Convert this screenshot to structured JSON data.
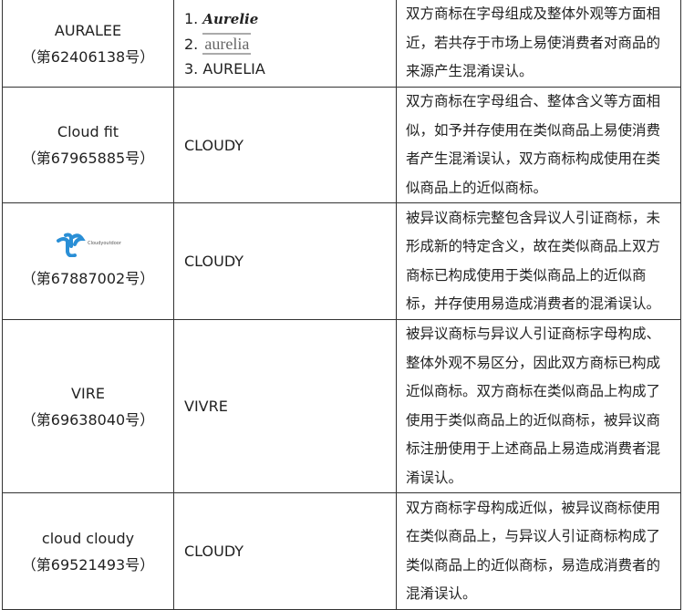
{
  "rows": [
    {
      "name": "AURALEE",
      "reg": "（第62406138号）",
      "cited": [
        "1. Aurelie",
        "2. aurelia",
        "3. AURELIA"
      ],
      "reason": "双方商标在字母组成及整体外观等方面相近，若共存于市场上易使消费者对商品的来源产生混淆误认。"
    },
    {
      "name": "Cloud fit",
      "reg": "（第67965885号）",
      "cited": "CLOUDY",
      "reason": "双方商标在字母组合、整体含义等方面相似，如予并存使用在类似商品上易使消费者产生混淆误认，双方商标构成使用在类似商品上的近似商标。"
    },
    {
      "logo_text": "Cloudyoutdoor",
      "logo_color": "#2a8fd6",
      "reg": "（第67887002号）",
      "cited": "CLOUDY",
      "reason": "被异议商标完整包含异议人引证商标，未形成新的特定含义，故在类似商品上双方商标已构成使用于类似商品上的近似商标，并存使用易造成消费者的混淆误认。"
    },
    {
      "name": "VIRE",
      "reg": "（第69638040号）",
      "cited": "VIVRE",
      "reason": "被异议商标与异议人引证商标字母构成、整体外观不易区分，因此双方商标已构成近似商标。双方商标在类似商品上构成了使用于类似商品上的近似商标，被异议商标注册使用于上述商品上易造成消费者混淆误认。"
    },
    {
      "name": "cloud cloudy",
      "reg": "（第69521493号）",
      "cited": "CLOUDY",
      "reason": "双方商标字母构成近似，被异议商标使用在类似商品上，与异议人引证商标构成了类似商品上的近似商标，易造成消费者的混淆误认。"
    }
  ]
}
